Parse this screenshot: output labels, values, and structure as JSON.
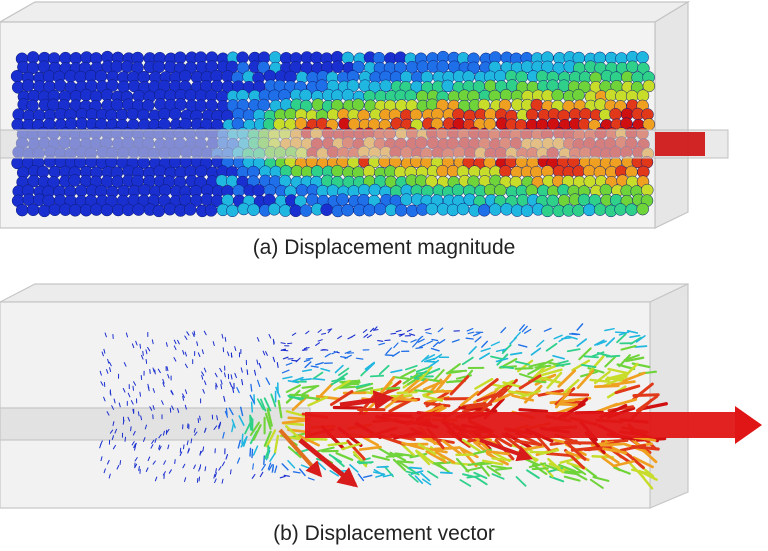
{
  "captions": {
    "a": "(a) Displacement magnitude",
    "b": "(b) Displacement vector"
  },
  "colors": {
    "low": "#1a2fd0",
    "mid_low": "#1fb6e0",
    "mid": "#3fd04a",
    "mid_high": "#e8e030",
    "high": "#e01818",
    "box_edge": "#bdbdbd",
    "box_fill": "#e9e9e9"
  }
}
